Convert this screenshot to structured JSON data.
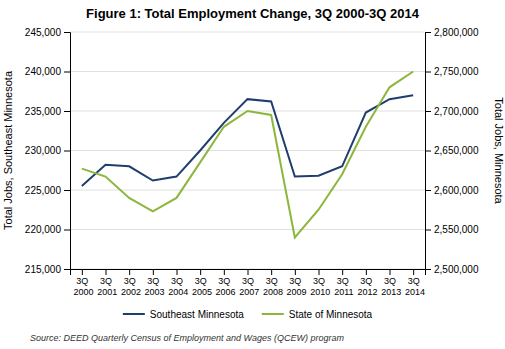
{
  "chart_data": {
    "type": "line",
    "title": "Figure 1: Total Employment Change, 3Q 2000-3Q 2014",
    "categories": [
      "3Q 2000",
      "3Q 2001",
      "3Q 2002",
      "3Q 2003",
      "3Q 2004",
      "3Q 2005",
      "3Q 2006",
      "3Q 2007",
      "3Q 2008",
      "3Q 2009",
      "3Q 2010",
      "3Q 2011",
      "3Q 2012",
      "3Q 2013",
      "3Q 2014"
    ],
    "series": [
      {
        "name": "Southeast Minnesota",
        "color": "#1f3e6e",
        "values": [
          225500,
          228200,
          228000,
          226200,
          226700,
          230000,
          233500,
          236500,
          236200,
          226700,
          226800,
          228000,
          234800,
          236500,
          237000
        ]
      },
      {
        "name": "State of Minnesota",
        "color": "#8db63c",
        "axis": "y2",
        "values": [
          2627000,
          2617000,
          2590000,
          2573000,
          2590000,
          2635000,
          2680000,
          2700000,
          2695000,
          2540000,
          2575000,
          2620000,
          2680000,
          2730000,
          2750000
        ]
      }
    ],
    "ylabel": "Total Jobs, Southeast Minnesota",
    "y2label": "Total Jobs, Minnesota",
    "ylim": [
      215000,
      245000
    ],
    "yticks": [
      {
        "value": 215000,
        "label": "215,000"
      },
      {
        "value": 220000,
        "label": "220,000"
      },
      {
        "value": 225000,
        "label": "225,000"
      },
      {
        "value": 230000,
        "label": "230,000"
      },
      {
        "value": 235000,
        "label": "235,000"
      },
      {
        "value": 240000,
        "label": "240,000"
      },
      {
        "value": 245000,
        "label": "245,000"
      }
    ],
    "y2lim": [
      2500000,
      2800000
    ],
    "y2ticks": [
      {
        "value": 2500000,
        "label": "2,500,000"
      },
      {
        "value": 2550000,
        "label": "2,550,000"
      },
      {
        "value": 2600000,
        "label": "2,600,000"
      },
      {
        "value": 2650000,
        "label": "2,650,000"
      },
      {
        "value": 2700000,
        "label": "2,700,000"
      },
      {
        "value": 2750000,
        "label": "2,750,000"
      },
      {
        "value": 2800000,
        "label": "2,800,000"
      }
    ],
    "grid": true,
    "legend": "bottom",
    "source": "Source: DEED Quarterly Census of Employment and Wages (QCEW) program"
  }
}
